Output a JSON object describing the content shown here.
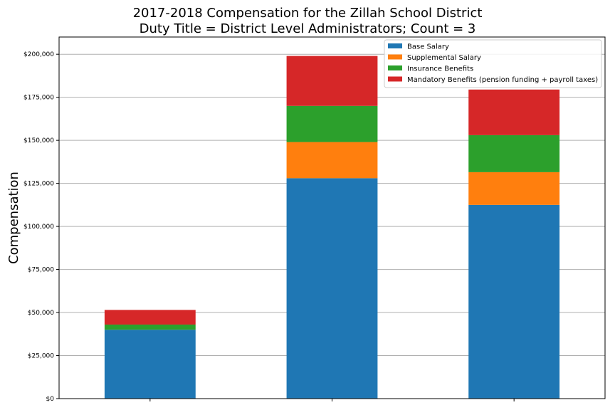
{
  "chart_data": {
    "type": "bar",
    "stacked": true,
    "title": [
      "2017-2018 Compensation for the Zillah School District",
      "Duty Title = District Level Administrators; Count = 3"
    ],
    "ylabel": "Compensation",
    "xlabel": "",
    "ylim": [
      0,
      210000
    ],
    "yticks": [
      "$0",
      "$25,000",
      "$50,000",
      "$75,000",
      "$100,000",
      "$125,000",
      "$150,000",
      "$175,000",
      "$200,000"
    ],
    "ytick_values": [
      0,
      25000,
      50000,
      75000,
      100000,
      125000,
      150000,
      175000,
      200000
    ],
    "grid": "horizontal",
    "legend_position": "top-right",
    "categories": [
      "",
      "",
      ""
    ],
    "series": [
      {
        "name": "Base Salary",
        "color": "#1f77b4",
        "values": [
          40000,
          128000,
          112500
        ]
      },
      {
        "name": "Supplemental Salary",
        "color": "#ff7f0e",
        "values": [
          0,
          21000,
          19000
        ]
      },
      {
        "name": "Insurance Benefits",
        "color": "#2ca02c",
        "values": [
          3000,
          21000,
          21500
        ]
      },
      {
        "name": "Mandatory Benefits (pension funding + payroll taxes)",
        "color": "#d62728",
        "values": [
          8500,
          29000,
          26500
        ]
      }
    ]
  }
}
